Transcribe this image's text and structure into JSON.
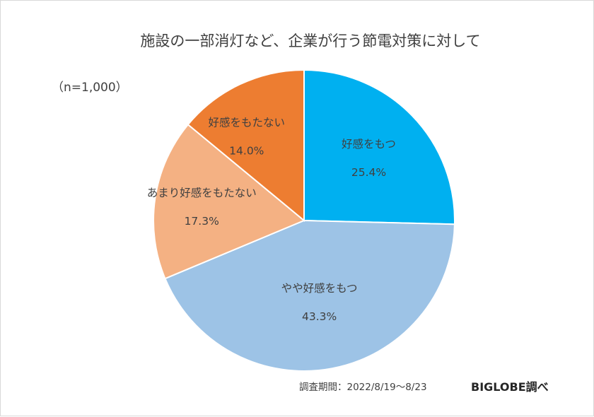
{
  "chart_data": {
    "type": "pie",
    "title": "施設の一部消灯など、企業が行う節電対策に対して",
    "subtitle": "（n=1,000）",
    "categories": [
      "好感をもつ",
      "やや好感をもつ",
      "あまり好感をもたない",
      "好感をもたない"
    ],
    "values": [
      25.4,
      43.3,
      17.3,
      14.0
    ],
    "value_labels": [
      "25.4%",
      "43.3%",
      "17.3%",
      "14.0%"
    ],
    "colors": [
      "#00b0f0",
      "#9dc3e6",
      "#f4b183",
      "#ed7d31"
    ],
    "start": "12 o'clock",
    "direction": "clockwise",
    "legend": "none"
  },
  "footer": {
    "period": "調査期間：2022/8/19～8/23",
    "source": "BIGLOBE調べ"
  }
}
